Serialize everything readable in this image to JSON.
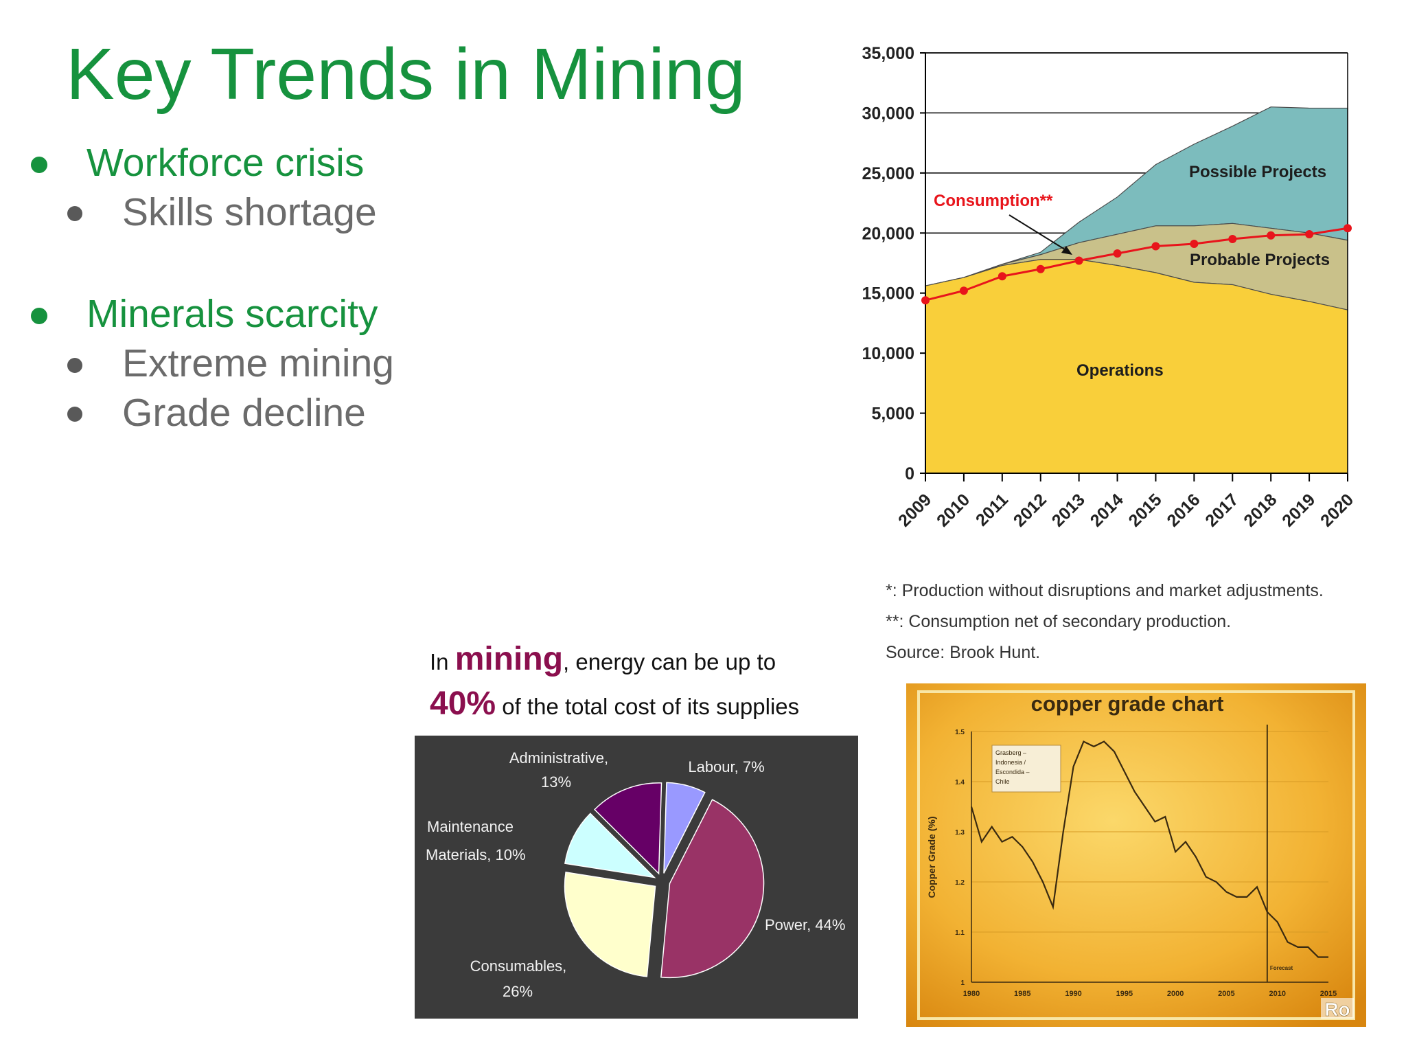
{
  "slide": {
    "title": "Key Trends in Mining",
    "bullets": [
      {
        "text": "Workforce crisis",
        "level": 1
      },
      {
        "text": "Skills shortage",
        "level": 2
      },
      {
        "text": "Minerals scarcity",
        "level": 1
      },
      {
        "text": "Extreme mining",
        "level": 2
      },
      {
        "text": "Grade decline",
        "level": 2
      }
    ],
    "notes": [
      "*: Production without disruptions and market adjustments.",
      "**: Consumption net of secondary production.",
      "Source: Brook Hunt."
    ],
    "energy_caption": {
      "in": "In ",
      "word": "mining",
      "rest1": ",  energy can be up to",
      "pct": "40%",
      "rest2": " of the total cost of its supplies"
    },
    "colors": {
      "title_green": "#16923e",
      "bullet_grey": "#6b6b6b",
      "accent_maroon": "#8b0f4e"
    }
  },
  "chart_data": [
    {
      "type": "area",
      "title": "",
      "xlabel": "",
      "ylabel": "",
      "x": [
        "2009",
        "2010",
        "2011",
        "2012",
        "2013",
        "2014",
        "2015",
        "2016",
        "2017",
        "2018",
        "2019",
        "2020"
      ],
      "ylim": [
        0,
        35000
      ],
      "yticks": [
        "0",
        "5,000",
        "10,000",
        "15,000",
        "20,000",
        "25,000",
        "30,000",
        "35,000"
      ],
      "series": [
        {
          "name": "Operations",
          "values": [
            15600,
            16300,
            17300,
            17800,
            17800,
            17300,
            16700,
            15900,
            15700,
            14900,
            14300,
            13600
          ],
          "color": "#f9cf3a"
        },
        {
          "name": "Probable Projects",
          "values": [
            0,
            0,
            100,
            400,
            1400,
            2600,
            3900,
            4700,
            5100,
            5500,
            5700,
            5800
          ],
          "color": "#c9c18a"
        },
        {
          "name": "Possible Projects",
          "values": [
            0,
            0,
            0,
            200,
            1700,
            3100,
            5100,
            6800,
            8100,
            10100,
            10400,
            11000
          ],
          "color": "#7cbcbd"
        },
        {
          "name": "Consumption**",
          "type": "line",
          "values": [
            14400,
            15200,
            16400,
            17000,
            17700,
            18300,
            18900,
            19100,
            19500,
            19800,
            19900,
            20400
          ],
          "color": "#e8141b"
        }
      ],
      "annotations": [
        "Possible Projects",
        "Probable Projects",
        "Operations",
        "Consumption**"
      ]
    },
    {
      "type": "pie",
      "title": "",
      "slices": [
        {
          "label": "Labour, 7%",
          "value": 7,
          "color": "#9999ff"
        },
        {
          "label": "Power, 44%",
          "value": 44,
          "color": "#993366"
        },
        {
          "label": "Consumables, 26%",
          "value": 26,
          "color": "#ffffcc"
        },
        {
          "label": "Maintenance Materials, 10%",
          "value": 10,
          "color": "#ccffff"
        },
        {
          "label": "Administrative, 13%",
          "value": 13,
          "color": "#660066"
        }
      ],
      "label_lines": {
        "labour": [
          "Labour, 7%"
        ],
        "power": [
          "Power, 44%"
        ],
        "consumables": [
          "Consumables,",
          "26%"
        ],
        "maintenance": [
          "Maintenance",
          "Materials, 10%"
        ],
        "administrative": [
          "Administrative,",
          "13%"
        ]
      }
    },
    {
      "type": "line",
      "title": "copper  grade chart",
      "ylabel": "Copper Grade (%)",
      "xlabel": "",
      "xlim": [
        1980,
        2015
      ],
      "ylim": [
        1.0,
        1.5
      ],
      "xticks": [
        "1980",
        "1985",
        "1990",
        "1995",
        "2000",
        "2005",
        "2010",
        "2015"
      ],
      "yticks": [
        "1",
        "1.1",
        "1.2",
        "1.3",
        "1.4",
        "1.5"
      ],
      "forecast_start": 2009,
      "forecast_label": "Forecast",
      "legend": [
        "Grasberg –",
        "Indonesia /",
        "Escondida –",
        "Chile"
      ],
      "watermark": "Ro",
      "series": [
        {
          "name": "Copper grade",
          "x": [
            1980,
            1981,
            1982,
            1983,
            1984,
            1985,
            1986,
            1987,
            1988,
            1989,
            1990,
            1991,
            1992,
            1993,
            1994,
            1995,
            1996,
            1997,
            1998,
            1999,
            2000,
            2001,
            2002,
            2003,
            2004,
            2005,
            2006,
            2007,
            2008,
            2009,
            2010,
            2011,
            2012,
            2013,
            2014,
            2015
          ],
          "values": [
            1.35,
            1.28,
            1.31,
            1.28,
            1.29,
            1.27,
            1.24,
            1.2,
            1.15,
            1.3,
            1.43,
            1.48,
            1.47,
            1.48,
            1.46,
            1.42,
            1.38,
            1.35,
            1.32,
            1.33,
            1.26,
            1.28,
            1.25,
            1.21,
            1.2,
            1.18,
            1.17,
            1.17,
            1.19,
            1.14,
            1.12,
            1.08,
            1.07,
            1.07,
            1.05,
            1.05
          ]
        }
      ]
    }
  ]
}
